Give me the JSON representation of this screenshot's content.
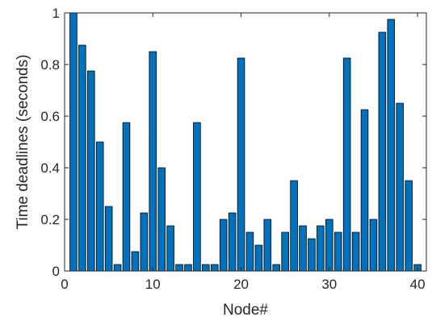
{
  "chart_data": {
    "type": "bar",
    "xlabel": "Node#",
    "ylabel": "Time deadlines (seconds)",
    "xlim": [
      0,
      41
    ],
    "ylim": [
      0,
      1
    ],
    "xticks": [
      0,
      10,
      20,
      30,
      40
    ],
    "yticks": [
      0,
      0.2,
      0.4,
      0.6,
      0.8,
      1
    ],
    "ytick_labels": [
      "0",
      "0.2",
      "0.4",
      "0.6",
      "0.8",
      "1"
    ],
    "grid": false,
    "bar_color": "#0072BD",
    "x": [
      1,
      2,
      3,
      4,
      5,
      6,
      7,
      8,
      9,
      10,
      11,
      12,
      13,
      14,
      15,
      16,
      17,
      18,
      19,
      20,
      21,
      22,
      23,
      24,
      25,
      26,
      27,
      28,
      29,
      30,
      31,
      32,
      33,
      34,
      35,
      36,
      37,
      38,
      39,
      40
    ],
    "values": [
      1.0,
      0.875,
      0.775,
      0.5,
      0.25,
      0.025,
      0.575,
      0.075,
      0.225,
      0.85,
      0.4,
      0.175,
      0.025,
      0.025,
      0.575,
      0.025,
      0.025,
      0.2,
      0.225,
      0.825,
      0.15,
      0.1,
      0.2,
      0.025,
      0.15,
      0.35,
      0.175,
      0.125,
      0.175,
      0.2,
      0.15,
      0.825,
      0.15,
      0.625,
      0.2,
      0.925,
      0.975,
      0.65,
      0.35,
      0.025
    ]
  }
}
